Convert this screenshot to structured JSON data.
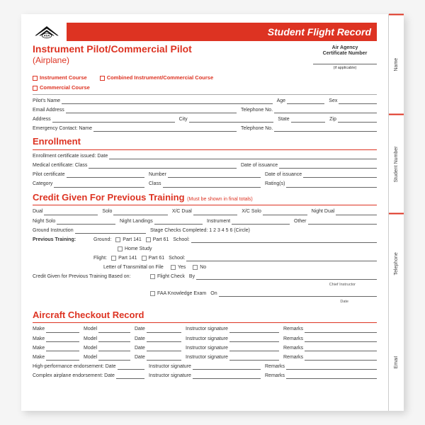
{
  "header": {
    "banner": "Student Flight Record",
    "title": "Instrument Pilot/Commercial Pilot",
    "subtitle": "(Airplane)",
    "agency_l1": "Air Agency",
    "agency_l2": "Certificate Number",
    "agency_note": "(if applicable)"
  },
  "side_tabs": [
    "Name",
    "Student Number",
    "Telephone",
    "Email"
  ],
  "courses": {
    "c1": "Instrument Course",
    "c2": "Combined Instrument/Commercial Course",
    "c3": "Commercial Course"
  },
  "info": {
    "name": "Pilot's Name",
    "age": "Age",
    "sex": "Sex",
    "email": "Email Address",
    "tel": "Telephone No.",
    "addr": "Address",
    "city": "City",
    "state": "State",
    "zip": "Zip",
    "emg": "Emergency Contact:  Name",
    "emg_tel": "Telephone No."
  },
  "enroll": {
    "title": "Enrollment",
    "f1": "Enrollment certificate issued: Date",
    "f2a": "Medical certificate: Class",
    "f2b": "Date of issuance",
    "f3a": "Pilot certificate",
    "f3b": "Number",
    "f3c": "Date of issuance",
    "f4a": "Category",
    "f4b": "Class",
    "f4c": "Rating(s)"
  },
  "credit": {
    "title": "Credit Given For Previous Training",
    "note": "(Must be shown in final totals)",
    "r1": {
      "a": "Dual",
      "b": "Solo",
      "c": "X/C Dual",
      "d": "X/C Solo",
      "e": "Night Dual"
    },
    "r2": {
      "a": "Night Solo",
      "b": "Night Landings",
      "c": "Instrument",
      "d": "Other"
    },
    "gi": "Ground Instruction",
    "stage": "Stage Checks Completed:  1  2  3  4  5  6   (Circle)",
    "prev": "Previous Training:",
    "ground": "Ground:",
    "flight": "Flight:",
    "p141": "Part 141",
    "p61": "Part 61",
    "home": "Home Study",
    "school": "School:",
    "letter": "Letter of Transmittal on File",
    "yes": "Yes",
    "no": "No",
    "based": "Credit Given for Previous Training Based on:",
    "fc": "Flight Check",
    "by": "By",
    "chief": "Chief Instructor",
    "faa": "FAA Knowledge Exam",
    "on": "On",
    "date": "Date"
  },
  "aircraft": {
    "title": "Aircraft Checkout Record",
    "make": "Make",
    "model": "Model",
    "date": "Date",
    "sig": "Instructor signature",
    "rem": "Remarks",
    "hp": "High-performance endorsement: Date",
    "cx": "Complex airplane endorsement: Date"
  },
  "colors": {
    "red": "#d32",
    "text": "#333",
    "line": "#666"
  }
}
